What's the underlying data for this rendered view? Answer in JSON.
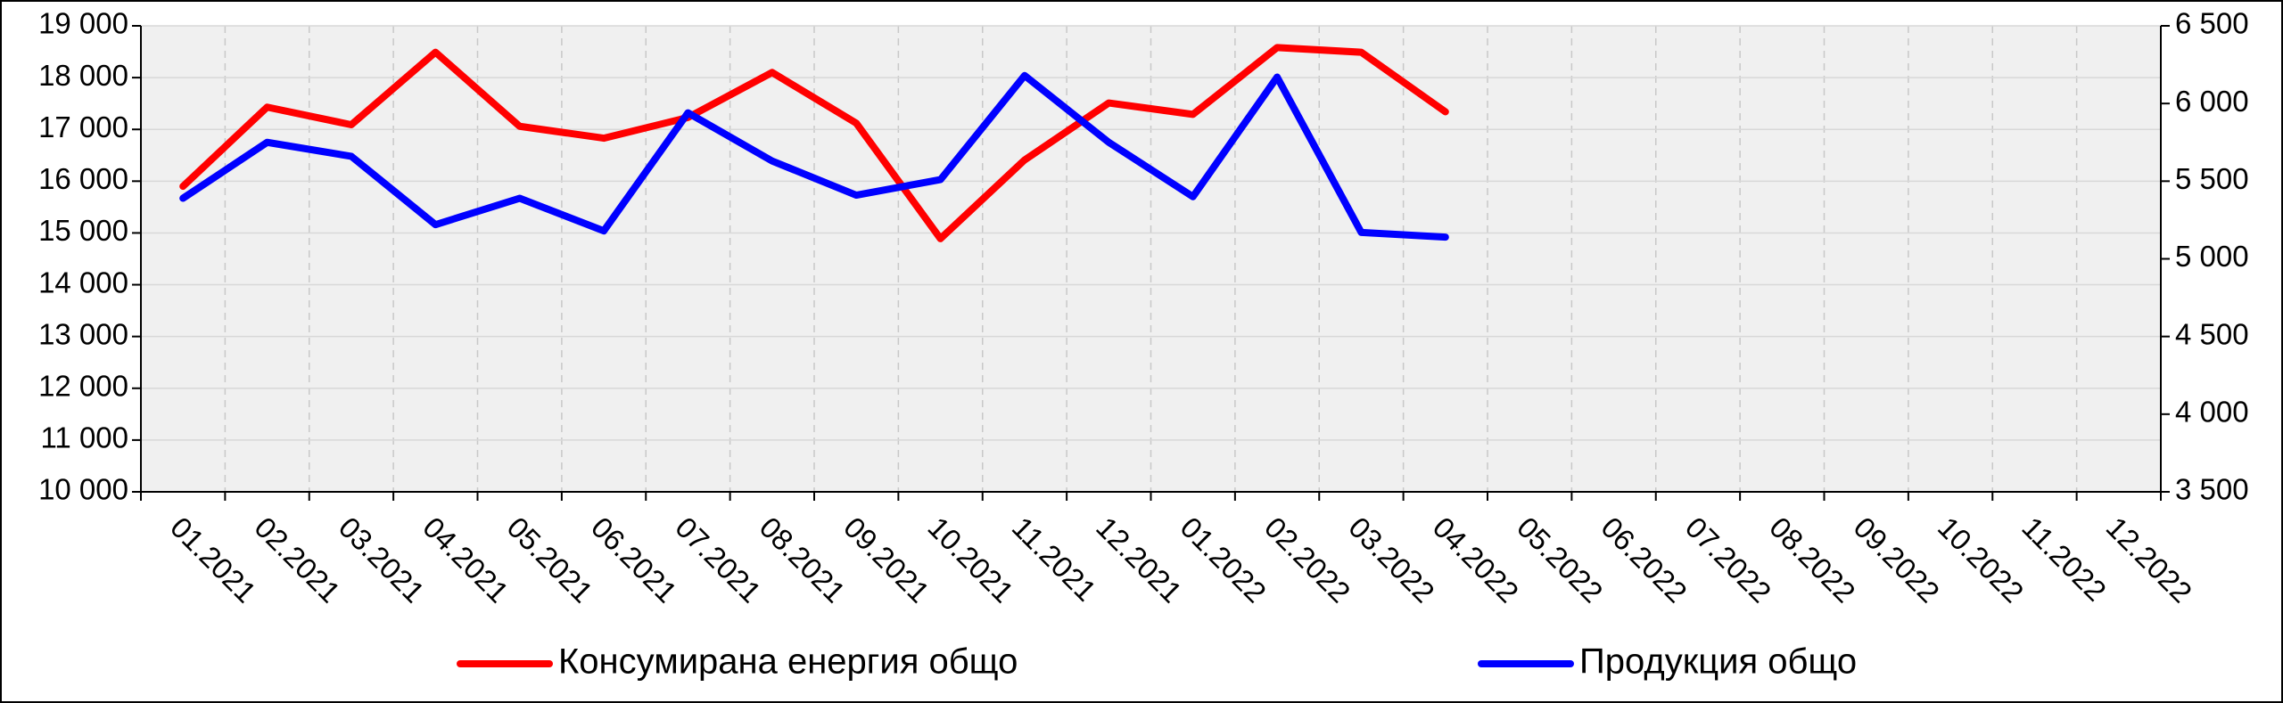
{
  "chart_data": {
    "type": "line",
    "categories": [
      "01.2021",
      "02.2021",
      "03.2021",
      "04.2021",
      "05.2021",
      "06.2021",
      "07.2021",
      "08.2021",
      "09.2021",
      "10.2021",
      "11.2021",
      "12.2021",
      "01.2022",
      "02.2022",
      "03.2022",
      "04.2022",
      "05.2022",
      "06.2022",
      "07.2022",
      "08.2022",
      "09.2022",
      "10.2022",
      "11.2022",
      "12.2022"
    ],
    "series": [
      {
        "name": "Консумирана енергия общо",
        "color": "#ff0000",
        "values": [
          15900,
          17430,
          17090,
          18490,
          17060,
          16830,
          17230,
          18100,
          17120,
          14890,
          16410,
          17510,
          17290,
          18580,
          18490,
          17340,
          null,
          null,
          null,
          null,
          null,
          null,
          null,
          null
        ]
      },
      {
        "name": "Продукция общо",
        "color": "#0000ff",
        "axis": "y2",
        "values": [
          5390,
          5750,
          5660,
          5220,
          5390,
          5180,
          5940,
          5630,
          5410,
          5510,
          6180,
          5750,
          5400,
          6170,
          5170,
          5140,
          null,
          null,
          null,
          null,
          null,
          null,
          null,
          null
        ]
      }
    ],
    "ylim": [
      10000,
      19000
    ],
    "yticks": [
      {
        "value": 10000,
        "label": "10 000"
      },
      {
        "value": 11000,
        "label": "11 000"
      },
      {
        "value": 12000,
        "label": "12 000"
      },
      {
        "value": 13000,
        "label": "13 000"
      },
      {
        "value": 14000,
        "label": "14 000"
      },
      {
        "value": 15000,
        "label": "15 000"
      },
      {
        "value": 16000,
        "label": "16 000"
      },
      {
        "value": 17000,
        "label": "17 000"
      },
      {
        "value": 18000,
        "label": "18 000"
      },
      {
        "value": 19000,
        "label": "19 000"
      }
    ],
    "y2lim": [
      3500,
      6500
    ],
    "y2ticks": [
      {
        "value": 3500,
        "label": "3 500"
      },
      {
        "value": 4000,
        "label": "4 000"
      },
      {
        "value": 4500,
        "label": "4 500"
      },
      {
        "value": 5000,
        "label": "5 000"
      },
      {
        "value": 5500,
        "label": "5 500"
      },
      {
        "value": 6000,
        "label": "6 000"
      },
      {
        "value": 6500,
        "label": "6 500"
      }
    ],
    "grid": true,
    "legend": "bottom"
  }
}
